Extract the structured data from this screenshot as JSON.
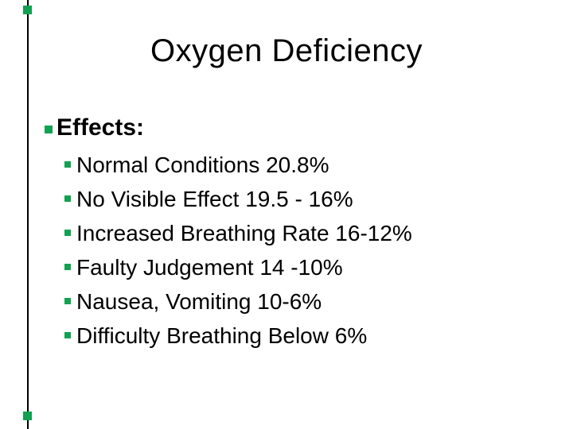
{
  "slide": {
    "title": "Oxygen Deficiency",
    "effects_heading": "Effects:",
    "bullets": [
      "Normal Conditions 20.8%",
      "No Visible Effect 19.5 - 16%",
      "Increased Breathing Rate 16-12%",
      "Faulty Judgement 14 -10%",
      "Nausea, Vomiting 10-6%",
      "Difficulty Breathing Below 6%"
    ],
    "colors": {
      "background": "#FFFFFF",
      "text": "#000000",
      "bullet_green": "#12A150",
      "accent_line": "#000000"
    }
  }
}
